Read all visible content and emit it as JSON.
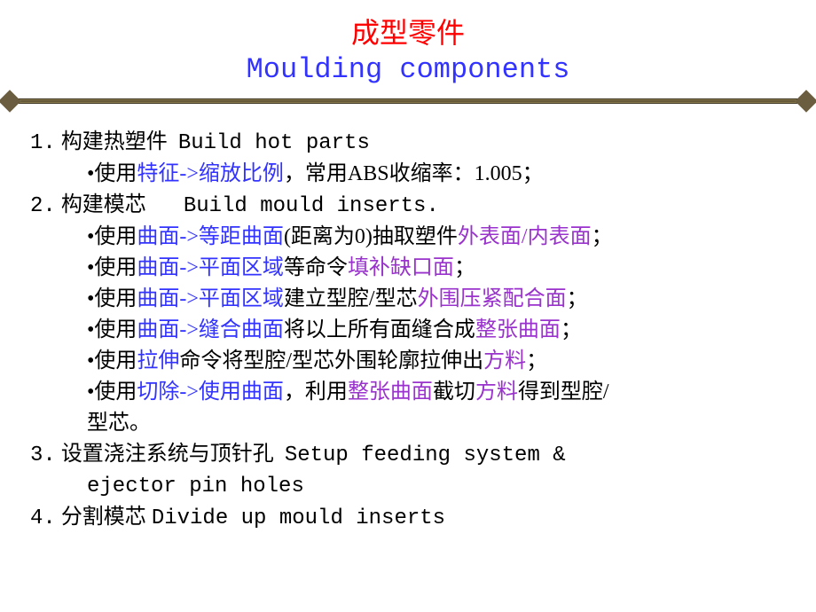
{
  "title": {
    "cn": "成型零件",
    "en": "Moulding components"
  },
  "colors": {
    "title_cn": "#ff0000",
    "title_en": "#3333ff",
    "blue": "#3333ff",
    "purple": "#9933cc",
    "black": "#000000",
    "divider_dark": "#3d3520",
    "divider_light": "#8a7a4f",
    "background": "#ffffff"
  },
  "typography": {
    "title_fontsize": 32,
    "body_fontsize": 24,
    "line_height": 1.46,
    "title_cn_font": "KaiTi",
    "title_en_font": "Courier New",
    "body_font": "SimSun"
  },
  "items": {
    "1": {
      "num": "1.",
      "cn": "构建热塑件",
      "en": "Build hot parts",
      "sub0_pre": "•使用",
      "sub0_blue": "特征->缩放比例",
      "sub0_post": "，常用ABS收缩率：1.005；"
    },
    "2": {
      "num": "2.",
      "cn": "构建模芯",
      "en": "Build mould inserts.",
      "sub0_pre": "•使用",
      "sub0_blue": "曲面->等距曲面",
      "sub0_mid": "(距离为0)抽取塑件",
      "sub0_purple": "外表面/内表面",
      "sub0_post": "；",
      "sub1_pre": "•使用",
      "sub1_blue": "曲面->平面区域",
      "sub1_mid": "等命令",
      "sub1_purple": "填补缺口面",
      "sub1_post": "；",
      "sub2_pre": "•使用",
      "sub2_blue": "曲面->平面区域",
      "sub2_mid": "建立型腔/型芯",
      "sub2_purple": "外围压紧配合面",
      "sub2_post": "；",
      "sub3_pre": "•使用",
      "sub3_blue": "曲面->缝合曲面",
      "sub3_mid": "将以上所有面缝合成",
      "sub3_purple": "整张曲面",
      "sub3_post": "；",
      "sub4_pre": "•使用",
      "sub4_blue": "拉伸",
      "sub4_mid": "命令将型腔/型芯外围轮廓拉伸出",
      "sub4_purple": "方料",
      "sub4_post": "；",
      "sub5_pre": "•使用",
      "sub5_blue": "切除->使用曲面",
      "sub5_mid": "，利用",
      "sub5_purple1": "整张曲面",
      "sub5_mid2": "截切",
      "sub5_purple2": "方料",
      "sub5_post": "得到型腔/",
      "sub5_line2": "型芯。"
    },
    "3": {
      "num": "3.",
      "cn": "设置浇注系统与顶针孔",
      "en1": "Setup feeding system &",
      "en2": "ejector pin holes"
    },
    "4": {
      "num": "4.",
      "cn": "分割模芯",
      "en": "Divide up mould inserts"
    }
  }
}
